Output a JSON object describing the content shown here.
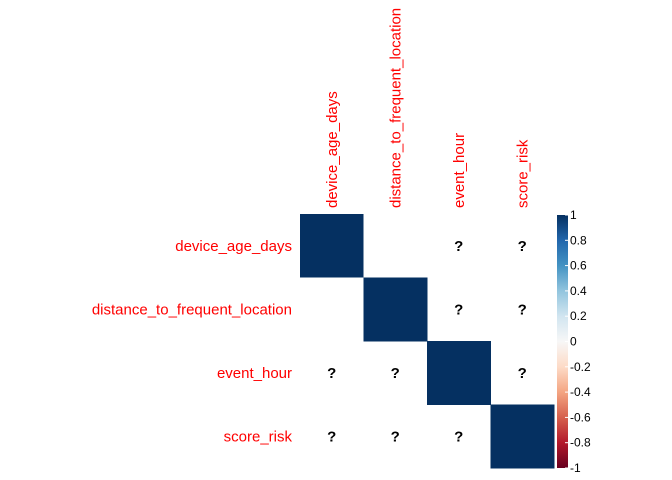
{
  "chart_data": {
    "type": "heatmap",
    "variables": [
      "device_age_days",
      "distance_to_frequent_location",
      "event_hour",
      "score_risk"
    ],
    "matrix": [
      [
        1,
        0,
        null,
        null
      ],
      [
        0,
        1,
        null,
        null
      ],
      [
        null,
        null,
        1,
        null
      ],
      [
        null,
        null,
        null,
        1
      ]
    ],
    "missing_symbol": "?",
    "value_range": [
      -1,
      1
    ],
    "colorbar_ticks": [
      "1",
      "0.8",
      "0.6",
      "0.4",
      "0.2",
      "0",
      "-0.2",
      "-0.4",
      "-0.6",
      "-0.8",
      "-1"
    ],
    "colorbar_tick_values": [
      1,
      0.8,
      0.6,
      0.4,
      0.2,
      0,
      -0.2,
      -0.4,
      -0.6,
      -0.8,
      -1
    ],
    "label_color": "#ff0000",
    "colors": {
      "positive_max": "#053061",
      "positive_mid": "#4393c3",
      "neutral": "#f7f7f7",
      "negative_mid": "#d6604d",
      "negative_max": "#67001f"
    },
    "grid": false,
    "legend_placement": "right"
  }
}
